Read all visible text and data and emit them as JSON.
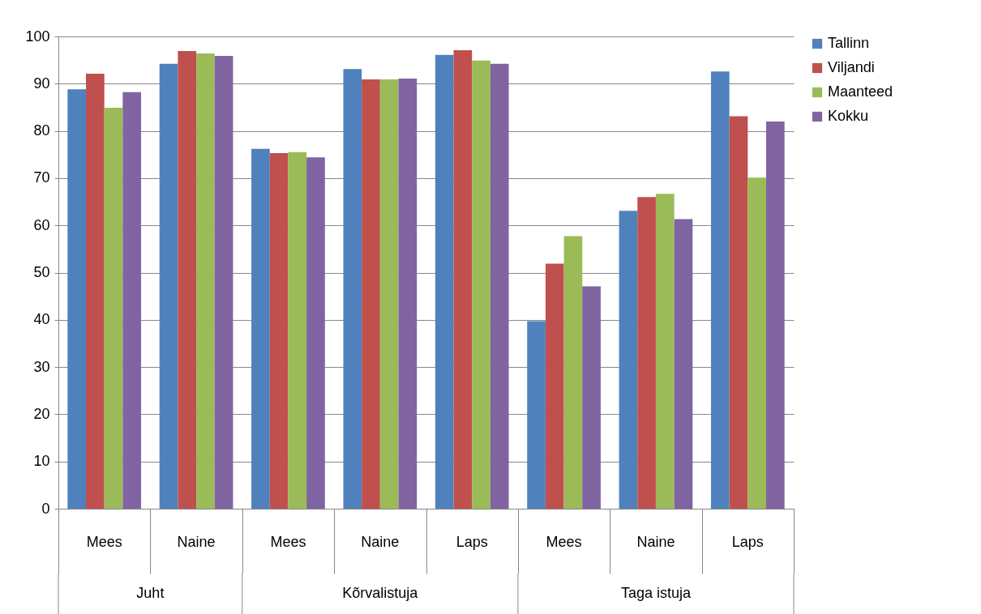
{
  "chart_data": {
    "type": "bar",
    "categories": [
      "Mees",
      "Naine",
      "Mees",
      "Naine",
      "Laps",
      "Mees",
      "Naine",
      "Laps"
    ],
    "series": [
      {
        "name": "Tallinn",
        "color": "#4f81bd",
        "values": [
          88.8,
          94.2,
          76.2,
          93.1,
          96.1,
          39.7,
          63.1,
          92.6
        ]
      },
      {
        "name": "Viljandi",
        "color": "#c0504d",
        "values": [
          92.1,
          96.9,
          75.3,
          90.9,
          97.1,
          51.9,
          66.0,
          83.1
        ]
      },
      {
        "name": "Maanteed",
        "color": "#9bbb59",
        "values": [
          84.9,
          96.4,
          75.5,
          90.9,
          94.9,
          57.7,
          66.7,
          70.1
        ]
      },
      {
        "name": "Kokku",
        "color": "#8064a2",
        "values": [
          88.2,
          95.9,
          74.4,
          91.1,
          94.2,
          47.1,
          61.3,
          82.0
        ]
      }
    ],
    "annotations": [
      "Juht",
      "Kõrvalistuja",
      "Taga istuja"
    ],
    "ylim": [
      0,
      100
    ],
    "yticks": [
      0,
      10,
      20,
      30,
      40,
      50,
      60,
      70,
      80,
      90,
      100
    ],
    "grid": "y",
    "legend": "right"
  }
}
